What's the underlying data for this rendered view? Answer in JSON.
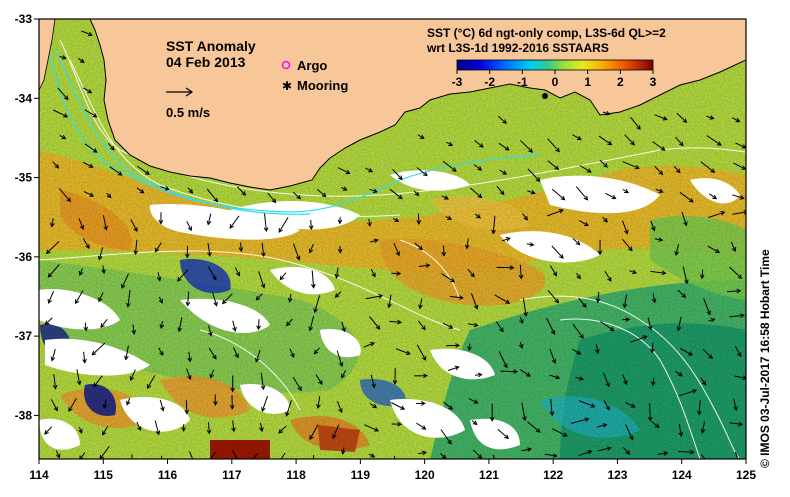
{
  "title": "SST Anomaly",
  "date": "04 Feb 2013",
  "scale_label": "0.5 m/s",
  "legend": {
    "argo": "Argo",
    "mooring": "Mooring"
  },
  "colorbar": {
    "title_line1": "SST (°C) 6d ngt-only comp, L3S-6d QL>=2",
    "title_line2": "wrt L3S-1d 1992-2016 SSTAARS",
    "ticks": [
      "-3",
      "-2",
      "-1",
      "0",
      "1",
      "2",
      "3"
    ],
    "min": -3,
    "max": 3
  },
  "axes": {
    "x_ticks": [
      "114",
      "115",
      "116",
      "117",
      "118",
      "119",
      "120",
      "121",
      "122",
      "123",
      "124",
      "125"
    ],
    "y_ticks": [
      "-33",
      "-34",
      "-35",
      "-36",
      "-37",
      "-38"
    ],
    "x_range": [
      114,
      125
    ],
    "y_range": [
      -38.55,
      -33
    ]
  },
  "credit": "© IMOS 03-Jul-2017 16:58 Hobart Time",
  "colors": {
    "land": "#f7c79a",
    "cloud": "#ffffff",
    "current_contour": "#ffffff",
    "cyan_front": "#33ddee",
    "argo": "#ff00ff",
    "mooring": "#000000"
  }
}
